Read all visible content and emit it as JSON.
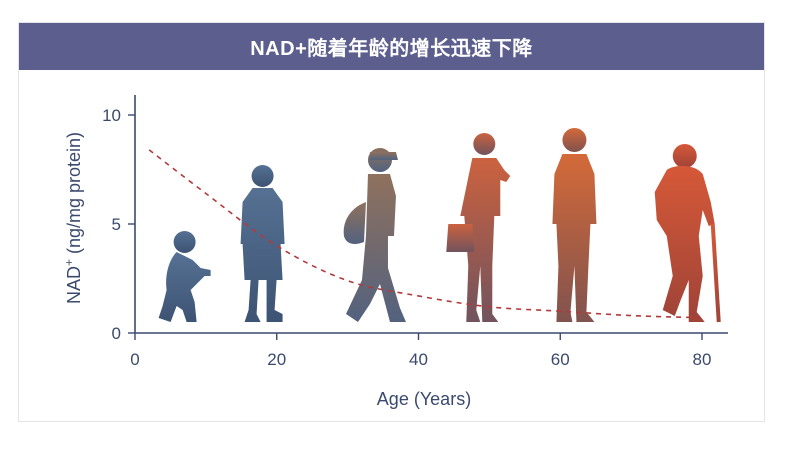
{
  "chart_data": {
    "type": "line",
    "title": "NAD+随着年龄的增长迅速下降",
    "xlabel": "Age (Years)",
    "ylabel": "NAD",
    "ylabel_superscript": "+",
    "ylabel_units": " (ng/mg protein)",
    "xlim": [
      0,
      84
    ],
    "ylim": [
      0,
      10
    ],
    "x_ticks": [
      0,
      20,
      40,
      60,
      80
    ],
    "y_ticks": [
      0,
      5,
      10
    ],
    "grid": false,
    "series": [
      {
        "style": "dashed",
        "color": "#b23a3a",
        "x": [
          2,
          10,
          20,
          30,
          40,
          50,
          60,
          70,
          80
        ],
        "y": [
          8.4,
          6.4,
          4.0,
          2.4,
          1.7,
          1.2,
          1.0,
          0.8,
          0.7
        ]
      }
    ]
  },
  "figures": [
    {
      "kind": "baby",
      "age": 7,
      "color": "#3f5a7e"
    },
    {
      "kind": "child",
      "age": 18,
      "color": "#3f5a7e"
    },
    {
      "kind": "teen",
      "age": 34,
      "color": "#6b6a6e"
    },
    {
      "kind": "adult",
      "age": 49,
      "color": "#b35a35"
    },
    {
      "kind": "mature",
      "age": 62,
      "color": "#c9552e"
    },
    {
      "kind": "elder",
      "age": 77,
      "color": "#cc4a2e"
    }
  ]
}
